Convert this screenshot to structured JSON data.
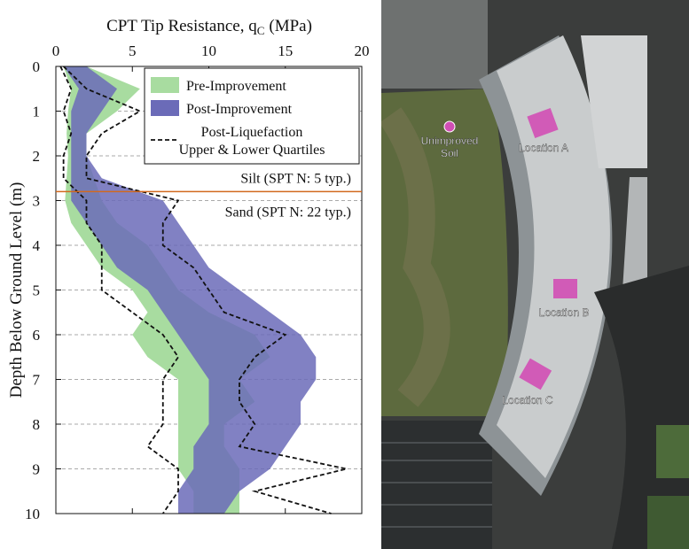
{
  "chart_data": {
    "type": "band",
    "title": "CPT Tip Resistance, q",
    "title_subscript": "C",
    "title_unit": "(MPa)",
    "y_label": "Depth Below Ground Level (m)",
    "xlim": [
      0,
      20
    ],
    "xticks": [
      0,
      5,
      10,
      15,
      20
    ],
    "ylim": [
      0,
      10
    ],
    "yticks": [
      0,
      1,
      2,
      3,
      4,
      5,
      6,
      7,
      8,
      9,
      10
    ],
    "grid": true,
    "depth": [
      0,
      0.5,
      1,
      1.5,
      2,
      2.5,
      3,
      3.5,
      4,
      4.5,
      5,
      5.5,
      6,
      6.5,
      7,
      7.5,
      8,
      8.5,
      9,
      9.5,
      10
    ],
    "series": [
      {
        "name": [
          "Pre-Improvement"
        ],
        "color": "#a8dca0",
        "style": "fill",
        "lower": [
          0.5,
          1,
          0.8,
          0.7,
          0.8,
          0.7,
          0.6,
          1,
          2,
          3,
          5,
          6,
          5,
          6,
          8,
          8,
          8,
          8,
          8,
          9,
          9
        ],
        "upper": [
          2,
          5.5,
          4,
          2,
          2,
          2.5,
          3,
          4,
          6,
          7,
          8,
          10,
          13,
          14,
          12,
          13,
          11,
          11,
          12,
          12,
          12
        ]
      },
      {
        "name": [
          "Post-Improvement"
        ],
        "color": "#6b6bb8",
        "style": "fill",
        "lower": [
          0.5,
          1.5,
          1,
          1,
          1,
          1,
          1,
          2,
          3,
          4,
          6,
          7,
          8,
          9,
          10,
          10,
          10,
          9,
          9,
          8,
          8
        ],
        "upper": [
          2,
          4,
          3,
          2,
          2,
          3,
          7,
          8,
          9,
          10,
          12,
          14,
          16,
          17,
          17,
          16,
          16,
          15,
          14,
          12,
          11
        ]
      },
      {
        "name": [
          "Post-Liquefaction",
          "Upper & Lower Quartiles"
        ],
        "color": "#111111",
        "style": "dashed",
        "lower": [
          0.3,
          1,
          0.5,
          1,
          0.5,
          0.5,
          2,
          2,
          3,
          3,
          3,
          5,
          7,
          8,
          7,
          7,
          7,
          6,
          8,
          8,
          7
        ],
        "upper": [
          0.5,
          2,
          5.5,
          3,
          2,
          2,
          8,
          7,
          7,
          9,
          10,
          11,
          15,
          13,
          12,
          12,
          13,
          12,
          19,
          13,
          18
        ]
      }
    ],
    "layer_boundary": 2.8,
    "layer_color": "#d2691e",
    "annotations": [
      "Silt (SPT N: 5 typ.)",
      "Sand (SPT N: 22 typ.)"
    ]
  },
  "photo": {
    "labels": [
      "Unimproved\nSoil",
      "Location A",
      "Location B",
      "Location C"
    ]
  }
}
